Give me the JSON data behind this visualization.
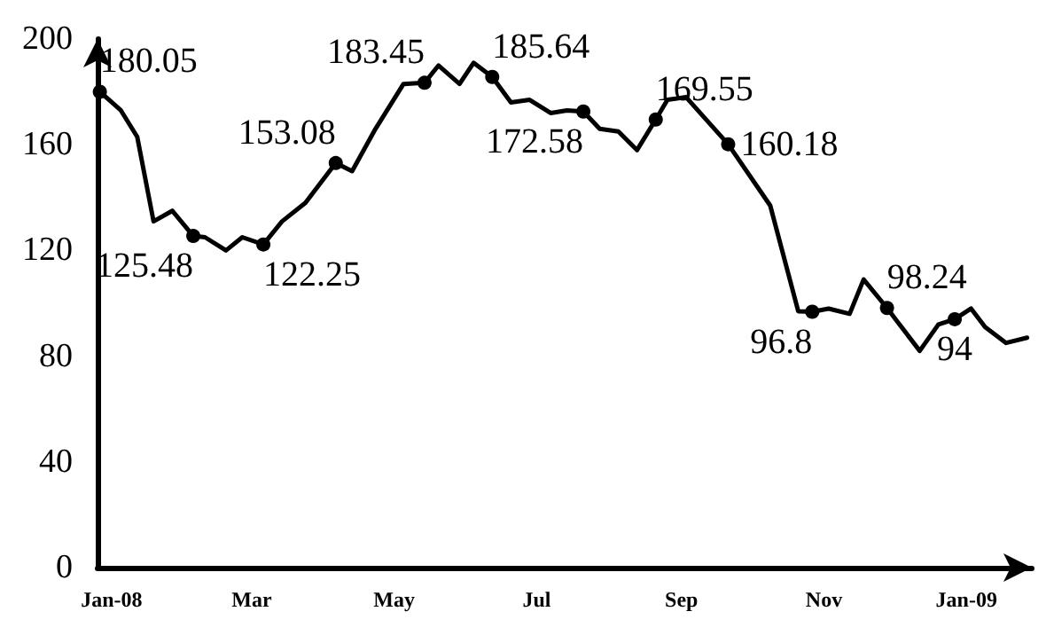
{
  "chart_data": {
    "type": "line",
    "x": [
      "2007-12-27",
      "2008-01-05",
      "2008-01-12",
      "2008-01-19",
      "2008-01-27",
      "2008-02-05",
      "2008-02-10",
      "2008-02-19",
      "2008-02-26",
      "2008-03-06",
      "2008-03-14",
      "2008-03-24",
      "2008-04-06",
      "2008-04-13",
      "2008-04-23",
      "2008-05-05",
      "2008-05-14",
      "2008-05-20",
      "2008-05-29",
      "2008-06-04",
      "2008-06-12",
      "2008-06-20",
      "2008-06-28",
      "2008-07-07",
      "2008-07-14",
      "2008-07-21",
      "2008-07-28",
      "2008-08-05",
      "2008-08-13",
      "2008-08-21",
      "2008-08-26",
      "2008-09-03",
      "2008-09-21",
      "2008-10-09",
      "2008-10-21",
      "2008-10-27",
      "2008-11-03",
      "2008-11-12",
      "2008-11-18",
      "2008-11-28",
      "2008-12-12",
      "2008-12-20",
      "2008-12-27",
      "2009-01-03",
      "2009-01-09",
      "2009-01-18",
      "2009-01-27"
    ],
    "series": [
      {
        "color": "#000000",
        "values": [
          180.05,
          173,
          163,
          131,
          135,
          125.48,
          125,
          120,
          125,
          122.25,
          131,
          138,
          153.08,
          150,
          166,
          183,
          183.45,
          190,
          183,
          191,
          185.64,
          176,
          177,
          172,
          173,
          172.58,
          166,
          165,
          158,
          169.55,
          177,
          178,
          160.18,
          137,
          97,
          96.8,
          98,
          96,
          109,
          98.24,
          82,
          92,
          94,
          98,
          91,
          85,
          87
        ],
        "value_labels": [
          "180.05",
          null,
          null,
          null,
          null,
          "125.48",
          null,
          null,
          null,
          "122.25",
          null,
          null,
          "153.08",
          null,
          null,
          null,
          "183.45",
          null,
          null,
          null,
          "185.64",
          null,
          null,
          null,
          null,
          "172.58",
          null,
          null,
          null,
          "169.55",
          null,
          null,
          "160.18",
          null,
          null,
          "96.8",
          null,
          null,
          null,
          "98.24",
          null,
          null,
          "94",
          null,
          null,
          null,
          null
        ]
      }
    ],
    "xlim": [
      "2007-12-26",
      "2009-01-29"
    ],
    "xticks": [
      {
        "value": "2008-01-01",
        "label": "Jan-08"
      },
      {
        "value": "2008-03-01",
        "label": "Mar"
      },
      {
        "value": "2008-05-01",
        "label": "May"
      },
      {
        "value": "2008-07-01",
        "label": "Jul"
      },
      {
        "value": "2008-09-01",
        "label": "Sep"
      },
      {
        "value": "2008-11-01",
        "label": "Nov"
      },
      {
        "value": "2009-01-01",
        "label": "Jan-09"
      }
    ],
    "ylim": [
      0,
      200
    ],
    "yticks": [
      0,
      40,
      80,
      120,
      160,
      200
    ],
    "line_style": "solid"
  }
}
